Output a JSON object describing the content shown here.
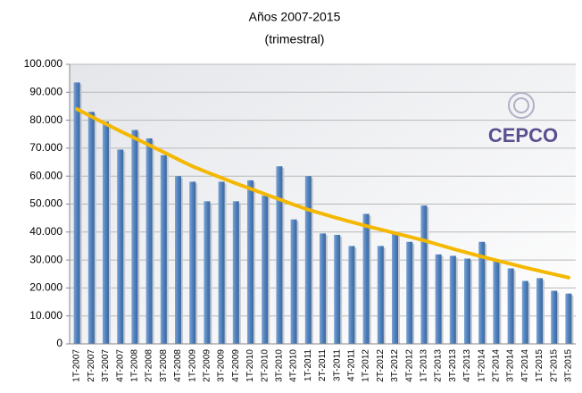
{
  "chart_data": {
    "type": "bar",
    "subtitle": "Años 2007-2015",
    "subtitle2": "(trimestral)",
    "logo": "CEPCO",
    "categories": [
      "1T-2007",
      "2T-2007",
      "3T-2007",
      "4T-2007",
      "1T-2008",
      "2T-2008",
      "3T-2008",
      "4T-2008",
      "1T-2009",
      "2T-2009",
      "3T-2009",
      "4T-2009",
      "1T-2010",
      "2T-2010",
      "3T-2010",
      "4T-2010",
      "1T-2011",
      "2T-2011",
      "3T-2011",
      "4T-2011",
      "1T-2012",
      "2T-2012",
      "3T-2012",
      "4T-2012",
      "1T-2013",
      "2T-2013",
      "3T-2013",
      "4T-2013",
      "1T-2014",
      "2T-2014",
      "3T-2014",
      "4T-2014",
      "1T-2015",
      "2T-2015",
      "3T-2015"
    ],
    "values": [
      93500,
      83000,
      79500,
      69500,
      76500,
      73500,
      67500,
      60000,
      58000,
      51000,
      58000,
      51000,
      58500,
      53000,
      63500,
      44500,
      60000,
      39500,
      39000,
      35000,
      46500,
      35000,
      39500,
      36500,
      49500,
      32000,
      31500,
      30500,
      36500,
      30000,
      27000,
      22500,
      23500,
      19000,
      18000
    ],
    "color": "#4f81bd",
    "trendline": {
      "color": "#f5b800",
      "values": [
        84000,
        81300,
        78700,
        76100,
        73600,
        71100,
        68600,
        66000,
        63500,
        61400,
        59400,
        57400,
        55500,
        53600,
        51700,
        49800,
        48000,
        46500,
        45000,
        43600,
        42200,
        40900,
        39600,
        38300,
        37000,
        35500,
        34000,
        32600,
        31200,
        29900,
        28600,
        27300,
        26100,
        24900,
        23700
      ]
    },
    "ylim": [
      0,
      100000
    ],
    "yticks": [
      0,
      {
        "value": 10000,
        "label": "10.000"
      },
      {
        "value": 20000,
        "label": "20.000"
      },
      {
        "value": 30000,
        "label": "30.000"
      },
      {
        "value": 40000,
        "label": "40.000"
      },
      {
        "value": 50000,
        "label": "50.000"
      },
      {
        "value": 60000,
        "label": "60.000"
      },
      {
        "value": 70000,
        "label": "70.000"
      },
      {
        "value": 80000,
        "label": "80.000"
      },
      {
        "value": 90000,
        "label": "90.000"
      },
      {
        "value": 100000,
        "label": "100.000"
      }
    ],
    "grid": true
  }
}
